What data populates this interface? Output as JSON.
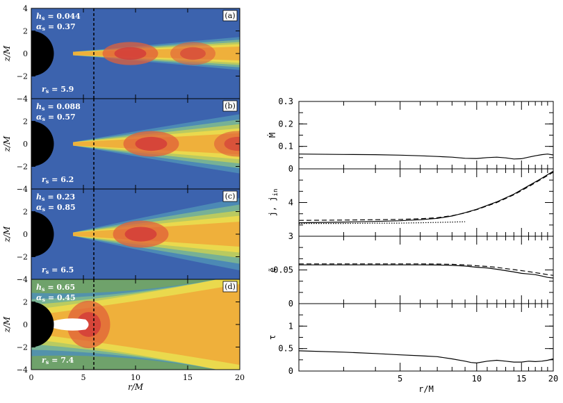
{
  "chart_data": [
    {
      "type": "heatmap",
      "xlabel": "r/M",
      "ylabel": "z/M",
      "xlim": [
        0,
        20
      ],
      "ylim": [
        -4,
        4
      ],
      "xticks": [
        "0",
        "5",
        "10",
        "15",
        "20"
      ],
      "yticks": [
        "4",
        "2",
        "0",
        "−2",
        "−4"
      ],
      "vertical_marker_x": 6,
      "colormap": [
        "#3552a0",
        "#4f8fb6",
        "#7fb98f",
        "#c6cf57",
        "#f2dc4a",
        "#f0a838",
        "#e0603a",
        "#d23a3a"
      ],
      "panels": [
        {
          "tag": "(a)",
          "h_label": "h",
          "h_value": "= 0.044",
          "alpha_label": "α",
          "alpha_value": "= 0.37",
          "r_label": "r",
          "r_value": "= 5.9",
          "hot_spots": [
            {
              "x": 9.5,
              "z": 0.0,
              "level": 1.0
            },
            {
              "x": 15.5,
              "z": 0.0,
              "level": 0.75
            }
          ],
          "opening": 0.06,
          "background": "#3c63ae"
        },
        {
          "tag": "(b)",
          "h_label": "h",
          "h_value": "= 0.088",
          "alpha_label": "α",
          "alpha_value": "= 0.57",
          "r_label": "r",
          "r_value": "= 6.2",
          "hot_spots": [
            {
              "x": 11.5,
              "z": 0.0,
              "level": 1.0
            },
            {
              "x": 19.8,
              "z": 0.0,
              "level": 0.8
            }
          ],
          "opening": 0.12,
          "background": "#3c63ae"
        },
        {
          "tag": "(c)",
          "h_label": "h",
          "h_value": "= 0.23",
          "alpha_label": "α",
          "alpha_value": "= 0.85",
          "r_label": "r",
          "r_value": "= 6.5",
          "hot_spots": [
            {
              "x": 10.5,
              "z": 0.0,
              "level": 1.0
            }
          ],
          "opening": 0.15,
          "background": "#3c63ae"
        },
        {
          "tag": "(d)",
          "h_label": "h",
          "h_value": "= 0.65",
          "alpha_label": "α",
          "alpha_value": "= 0.45",
          "r_label": "r",
          "r_value": "= 7.4",
          "hot_spots": [
            {
              "x": 5.5,
              "z": 0.0,
              "level": 1.0
            }
          ],
          "opening": 0.6,
          "background": "#6fa26b"
        }
      ]
    },
    {
      "type": "line",
      "xlabel": "r/M",
      "xscale": "log",
      "xlim": [
        2,
        20
      ],
      "xticks": [
        5,
        10,
        15,
        20
      ],
      "panels": [
        {
          "ylabel": "Ṁ",
          "ylim": [
            0,
            0.3
          ],
          "yticks": [
            "0",
            "0.1",
            "0.2",
            "0.3"
          ],
          "series": [
            {
              "style": "solid",
              "x": [
                2,
                3,
                4,
                5,
                6,
                7,
                8,
                9,
                10,
                11,
                12,
                13,
                14,
                15,
                16,
                17,
                18,
                19,
                20
              ],
              "y": [
                0.066,
                0.064,
                0.063,
                0.061,
                0.058,
                0.055,
                0.052,
                0.047,
                0.046,
                0.05,
                0.052,
                0.049,
                0.044,
                0.045,
                0.052,
                0.058,
                0.063,
                0.066,
                0.062
              ]
            }
          ]
        },
        {
          "ylabel": "j, j",
          "ylabel_sub": "in",
          "ylim": [
            3,
            5
          ],
          "yticks": [
            "3",
            "4"
          ],
          "series": [
            {
              "style": "solid",
              "x": [
                2,
                3,
                4,
                5,
                6,
                7,
                8,
                9,
                10,
                12,
                14,
                16,
                18,
                20
              ],
              "y": [
                3.4,
                3.42,
                3.44,
                3.46,
                3.49,
                3.53,
                3.6,
                3.7,
                3.8,
                4.02,
                4.25,
                4.5,
                4.72,
                4.93
              ]
            },
            {
              "style": "dashed",
              "x": [
                2,
                3,
                4,
                5,
                6,
                7,
                8,
                9,
                10,
                12,
                14,
                16,
                18,
                20
              ],
              "y": [
                3.47,
                3.48,
                3.49,
                3.5,
                3.52,
                3.55,
                3.61,
                3.69,
                3.79,
                4.0,
                4.23,
                4.47,
                4.7,
                4.9
              ]
            },
            {
              "style": "dotted",
              "x": [
                2,
                3,
                4,
                5,
                6,
                7,
                8,
                9
              ],
              "y": [
                3.38,
                3.38,
                3.39,
                3.39,
                3.4,
                3.41,
                3.42,
                3.43
              ]
            }
          ]
        },
        {
          "ylabel": "ẽ",
          "ylim": [
            0,
            0.1
          ],
          "yticks": [
            "0",
            "0.05"
          ],
          "series": [
            {
              "style": "solid",
              "x": [
                2,
                4,
                6,
                7,
                8,
                9,
                10,
                11,
                12,
                13,
                14,
                15,
                16,
                17,
                18,
                19,
                20
              ],
              "y": [
                0.0575,
                0.0575,
                0.0575,
                0.0573,
                0.0568,
                0.0558,
                0.054,
                0.053,
                0.051,
                0.049,
                0.047,
                0.045,
                0.044,
                0.043,
                0.041,
                0.039,
                0.038
              ]
            },
            {
              "style": "dashed",
              "x": [
                2,
                4,
                6,
                7,
                8,
                9,
                10,
                11,
                12,
                13,
                14,
                15,
                16,
                17,
                18,
                19,
                20
              ],
              "y": [
                0.059,
                0.059,
                0.059,
                0.0588,
                0.0583,
                0.0575,
                0.0562,
                0.0552,
                0.0538,
                0.052,
                0.0505,
                0.049,
                0.0475,
                0.046,
                0.0445,
                0.043,
                0.042
              ]
            }
          ]
        },
        {
          "ylabel": "τ",
          "ylim": [
            0,
            1.5
          ],
          "yticks": [
            "0",
            "0.5",
            "1"
          ],
          "series": [
            {
              "style": "solid",
              "x": [
                2,
                3,
                4,
                5,
                6,
                7,
                8,
                9,
                9.5,
                10,
                11,
                12,
                13,
                14,
                15,
                16,
                17,
                18,
                19,
                20
              ],
              "y": [
                0.45,
                0.42,
                0.39,
                0.36,
                0.34,
                0.32,
                0.27,
                0.22,
                0.19,
                0.18,
                0.22,
                0.24,
                0.22,
                0.2,
                0.2,
                0.22,
                0.21,
                0.22,
                0.24,
                0.27
              ]
            }
          ]
        }
      ]
    }
  ]
}
